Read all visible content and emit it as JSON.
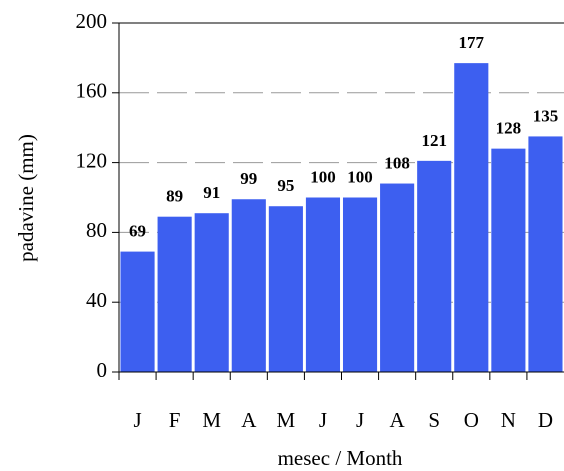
{
  "chart_data": {
    "type": "bar",
    "categories": [
      "J",
      "F",
      "M",
      "A",
      "M",
      "J",
      "J",
      "A",
      "S",
      "O",
      "N",
      "D"
    ],
    "values": [
      69,
      89,
      91,
      99,
      95,
      100,
      100,
      108,
      121,
      177,
      128,
      135
    ],
    "color": "#3d5ff0",
    "x_label": "mesec / Month",
    "y_label": "padavine (mm)",
    "ylim": [
      0,
      200
    ],
    "yticks": [
      0,
      40,
      80,
      120,
      160,
      200
    ],
    "grid": true
  }
}
